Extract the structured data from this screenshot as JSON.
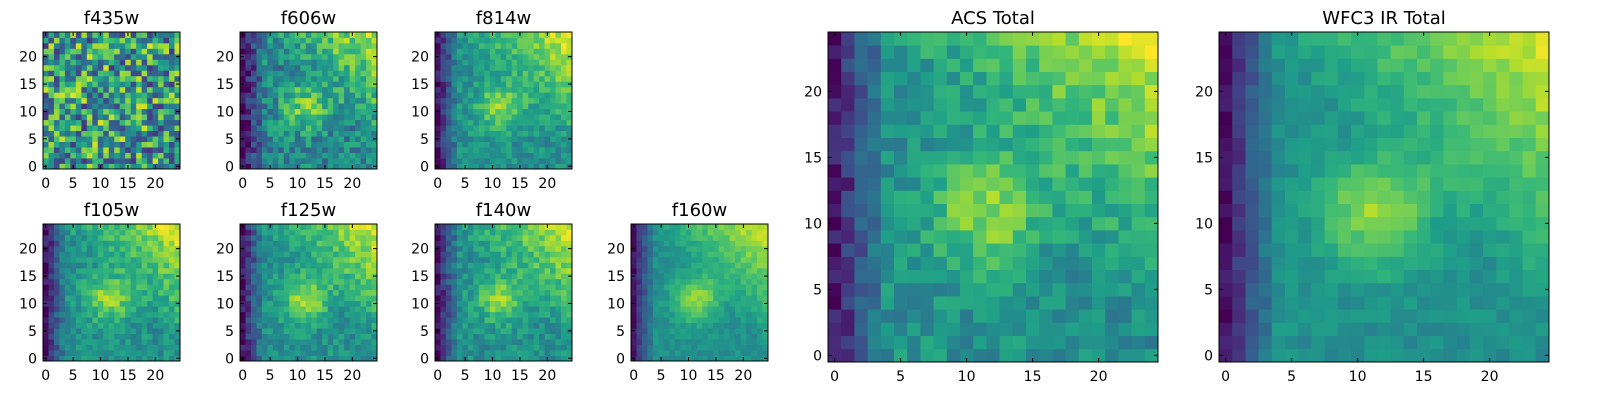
{
  "figure": {
    "background": "#ffffff",
    "colormap": "viridis"
  },
  "chart_data": [
    {
      "type": "heatmap",
      "title": "f435w",
      "grid": [
        25,
        25
      ],
      "x_ticks": [
        0,
        5,
        10,
        15,
        20
      ],
      "y_ticks": [
        0,
        5,
        10,
        15,
        20
      ],
      "xlim": [
        0,
        24
      ],
      "ylim": [
        0,
        24
      ],
      "pattern": "noise"
    },
    {
      "type": "heatmap",
      "title": "f606w",
      "grid": [
        25,
        25
      ],
      "x_ticks": [
        0,
        5,
        10,
        15,
        20
      ],
      "y_ticks": [
        0,
        5,
        10,
        15,
        20
      ],
      "xlim": [
        0,
        24
      ],
      "ylim": [
        0,
        24
      ],
      "pattern": "faint-source"
    },
    {
      "type": "heatmap",
      "title": "f814w",
      "grid": [
        25,
        25
      ],
      "x_ticks": [
        0,
        5,
        10,
        15,
        20
      ],
      "y_ticks": [
        0,
        5,
        10,
        15,
        20
      ],
      "xlim": [
        0,
        24
      ],
      "ylim": [
        0,
        24
      ],
      "pattern": "source"
    },
    {
      "type": "heatmap",
      "title": "f105w",
      "grid": [
        25,
        25
      ],
      "x_ticks": [
        0,
        5,
        10,
        15,
        20
      ],
      "y_ticks": [
        0,
        5,
        10,
        15,
        20
      ],
      "xlim": [
        0,
        24
      ],
      "ylim": [
        0,
        24
      ],
      "pattern": "source"
    },
    {
      "type": "heatmap",
      "title": "f125w",
      "grid": [
        25,
        25
      ],
      "x_ticks": [
        0,
        5,
        10,
        15,
        20
      ],
      "y_ticks": [
        0,
        5,
        10,
        15,
        20
      ],
      "xlim": [
        0,
        24
      ],
      "ylim": [
        0,
        24
      ],
      "pattern": "source"
    },
    {
      "type": "heatmap",
      "title": "f140w",
      "grid": [
        25,
        25
      ],
      "x_ticks": [
        0,
        5,
        10,
        15,
        20
      ],
      "y_ticks": [
        0,
        5,
        10,
        15,
        20
      ],
      "xlim": [
        0,
        24
      ],
      "ylim": [
        0,
        24
      ],
      "pattern": "source"
    },
    {
      "type": "heatmap",
      "title": "f160w",
      "grid": [
        25,
        25
      ],
      "x_ticks": [
        0,
        5,
        10,
        15,
        20
      ],
      "y_ticks": [
        0,
        5,
        10,
        15,
        20
      ],
      "xlim": [
        0,
        24
      ],
      "ylim": [
        0,
        24
      ],
      "pattern": "smooth-source"
    },
    {
      "type": "heatmap",
      "title": "ACS Total",
      "grid": [
        25,
        25
      ],
      "x_ticks": [
        0,
        5,
        10,
        15,
        20
      ],
      "y_ticks": [
        0,
        5,
        10,
        15,
        20
      ],
      "xlim": [
        0,
        24
      ],
      "ylim": [
        0,
        24
      ],
      "pattern": "source"
    },
    {
      "type": "heatmap",
      "title": "WFC3 IR Total",
      "grid": [
        25,
        25
      ],
      "x_ticks": [
        0,
        5,
        10,
        15,
        20
      ],
      "y_ticks": [
        0,
        5,
        10,
        15,
        20
      ],
      "xlim": [
        0,
        24
      ],
      "ylim": [
        0,
        24
      ],
      "pattern": "smooth-source"
    }
  ]
}
